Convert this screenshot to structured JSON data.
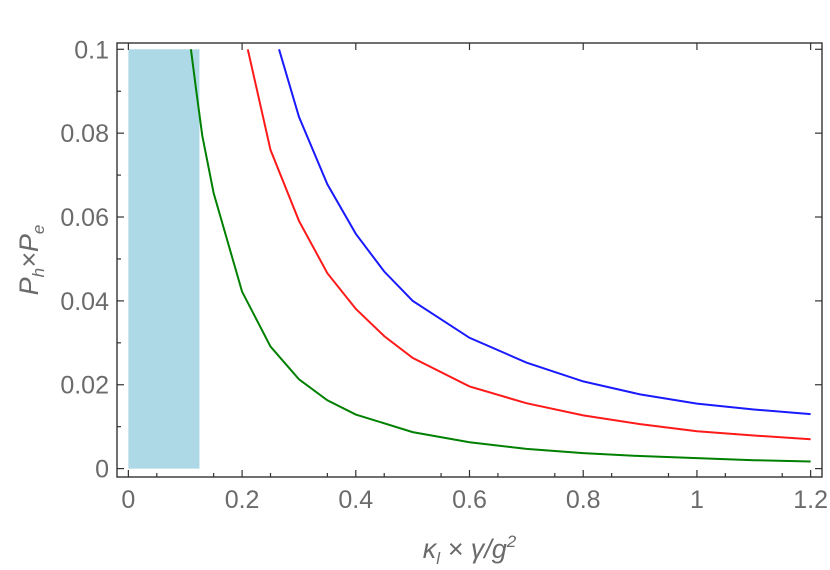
{
  "chart_data": {
    "type": "line",
    "title": "",
    "xlabel": "κ_l × γ/g²",
    "ylabel": "P_h × P_e",
    "xlim": [
      -0.02,
      1.22
    ],
    "ylim": [
      -0.002,
      0.1015
    ],
    "x_ticks": [
      0,
      0.2,
      0.4,
      0.6,
      0.8,
      1,
      1.2
    ],
    "x_tick_labels": [
      "0",
      "0.2",
      "0.4",
      "0.6",
      "0.8",
      "1",
      "1.2"
    ],
    "y_ticks": [
      0,
      0.02,
      0.04,
      0.06,
      0.08,
      0.1
    ],
    "y_tick_labels": [
      "0",
      "0.02",
      "0.04",
      "0.06",
      "0.08",
      "0.1"
    ],
    "grid": false,
    "legend": "none",
    "shaded_region": {
      "x_range": [
        0,
        0.125
      ],
      "y_range": [
        0,
        0.1
      ],
      "color": "#add8e6"
    },
    "series": [
      {
        "color": "#1a1aff",
        "x": [
          0.265,
          0.3,
          0.35,
          0.4,
          0.45,
          0.5,
          0.6,
          0.7,
          0.8,
          0.9,
          1.0,
          1.1,
          1.2
        ],
        "y": [
          0.1,
          0.0839,
          0.0678,
          0.056,
          0.047,
          0.04,
          0.0312,
          0.0253,
          0.0208,
          0.0177,
          0.0155,
          0.0141,
          0.013
        ]
      },
      {
        "color": "#ff1a1a",
        "x": [
          0.21,
          0.25,
          0.3,
          0.35,
          0.4,
          0.45,
          0.5,
          0.6,
          0.7,
          0.8,
          0.9,
          1.0,
          1.1,
          1.2
        ],
        "y": [
          0.1,
          0.076,
          0.0591,
          0.0466,
          0.0381,
          0.0316,
          0.0264,
          0.0196,
          0.0156,
          0.0127,
          0.0106,
          0.0089,
          0.0079,
          0.007
        ]
      },
      {
        "color": "#008000",
        "x": [
          0.11,
          0.12,
          0.13,
          0.15,
          0.2,
          0.25,
          0.3,
          0.35,
          0.4,
          0.5,
          0.6,
          0.7,
          0.8,
          0.9,
          1.0,
          1.1,
          1.2
        ],
        "y": [
          0.1,
          0.0895,
          0.0794,
          0.0657,
          0.0422,
          0.0291,
          0.0213,
          0.0163,
          0.0129,
          0.0087,
          0.0063,
          0.0047,
          0.0037,
          0.003,
          0.0025,
          0.002,
          0.0017
        ]
      }
    ]
  }
}
